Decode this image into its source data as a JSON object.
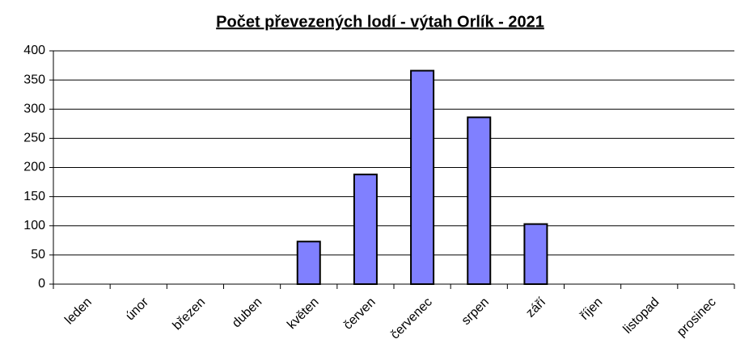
{
  "chart_data": {
    "type": "bar",
    "title": "Počet převezených lodí - výtah Orlík - 2021",
    "categories": [
      "leden",
      "únor",
      "březen",
      "duben",
      "květen",
      "červen",
      "červenec",
      "srpen",
      "září",
      "říjen",
      "listopad",
      "prosinec"
    ],
    "values": [
      0,
      0,
      0,
      0,
      73,
      188,
      366,
      286,
      103,
      0,
      0,
      0
    ],
    "color": "#8080ff",
    "ylim": [
      0,
      400
    ],
    "yticks": [
      0,
      50,
      100,
      150,
      200,
      250,
      300,
      350,
      400
    ],
    "grid": true
  }
}
